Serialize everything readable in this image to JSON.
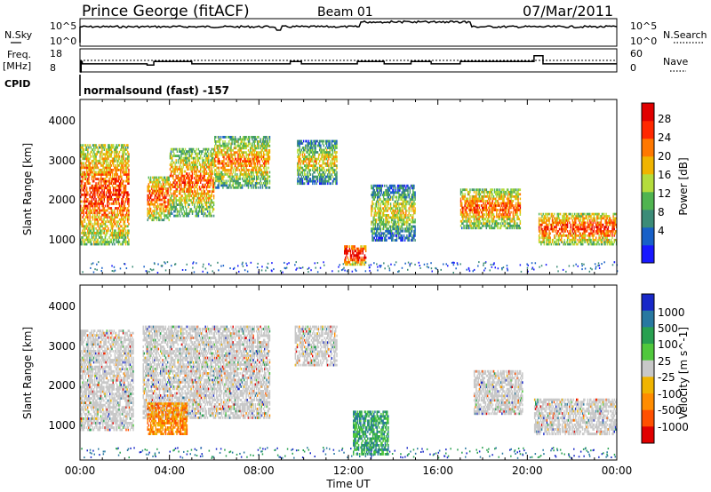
{
  "header": {
    "station": "Prince George (fitACF)",
    "beam": "Beam 01",
    "date": "07/Mar/2011"
  },
  "summary_panel": {
    "nsky_label": "N.Sky",
    "nsky_ticks": [
      "10^5",
      "10^0"
    ],
    "nsearch_label": "N.Search",
    "nsearch_ticks": [
      "10^5",
      "10^0"
    ],
    "freq_label": "Freq.",
    "freq_unit": "[MHz]",
    "freq_ticks": [
      "18",
      "8"
    ],
    "nave_label": "Nave",
    "nave_ticks": [
      "60",
      "0"
    ],
    "cpid_label": "CPID",
    "cpid_text": "normalsound (fast) -157"
  },
  "chart_data": [
    {
      "type": "line",
      "title": "",
      "ylabel": "Freq. [MHz]",
      "ylim": [
        8,
        18
      ],
      "series": [
        {
          "name": "Freq.",
          "x_hours": [
            0,
            0.05,
            0.1,
            0.8,
            1.5,
            2.1,
            2.6,
            3.0,
            3.3,
            4.7,
            5.0,
            6.8,
            7.3,
            8.9,
            9.4,
            9.7,
            9.9,
            12.0,
            12.4,
            13.2,
            13.6,
            14.2,
            14.8,
            15.3,
            15.7,
            16.8,
            17.0,
            20.3,
            20.7,
            24
          ],
          "values": [
            8,
            12.5,
            11.5,
            11.5,
            11.5,
            11.5,
            11.5,
            11,
            12.5,
            12.5,
            11.5,
            11.5,
            11.5,
            11.5,
            12.5,
            12.5,
            11.5,
            11.5,
            12.5,
            12.5,
            11.5,
            11.5,
            12.5,
            12.5,
            11.5,
            11.5,
            12.5,
            15,
            11.5,
            11.5
          ]
        }
      ]
    },
    {
      "type": "heatmap",
      "title": "",
      "xlabel": "Time UT",
      "ylabel": "Slant Range [km]",
      "ylim": [
        180,
        4500
      ],
      "xlim": [
        "00:00",
        "24:00"
      ],
      "x_ticks": [
        "00:00",
        "04:00",
        "08:00",
        "12:00",
        "16:00",
        "20:00",
        "00:00"
      ],
      "y_ticks": [
        "1000",
        "2000",
        "3000",
        "4000"
      ],
      "colorbar": {
        "label": "Power [dB]",
        "ticks": [
          "4",
          "8",
          "12",
          "16",
          "20",
          "24",
          "28"
        ],
        "colors": [
          "#1818ff",
          "#1860c8",
          "#3c8c78",
          "#50b450",
          "#b4dc3c",
          "#f0b400",
          "#ff7800",
          "#ff2800",
          "#e00000"
        ]
      },
      "regions": [
        {
          "t0": 0.0,
          "t1": 2.2,
          "r0": 900,
          "r1": 3400,
          "level": 0.7
        },
        {
          "t0": 3.0,
          "t1": 4.0,
          "r0": 1500,
          "r1": 2600,
          "level": 0.7
        },
        {
          "t0": 4.0,
          "t1": 6.0,
          "r0": 1600,
          "r1": 3300,
          "level": 0.55
        },
        {
          "t0": 6.0,
          "t1": 8.5,
          "r0": 2300,
          "r1": 3600,
          "level": 0.5
        },
        {
          "t0": 9.7,
          "t1": 11.5,
          "r0": 2400,
          "r1": 3500,
          "level": 0.3
        },
        {
          "t0": 11.8,
          "t1": 12.8,
          "r0": 400,
          "r1": 900,
          "level": 0.95
        },
        {
          "t0": 13.0,
          "t1": 15.0,
          "r0": 1000,
          "r1": 2400,
          "level": 0.25
        },
        {
          "t0": 17.0,
          "t1": 19.7,
          "r0": 1300,
          "r1": 2300,
          "level": 0.6
        },
        {
          "t0": 20.5,
          "t1": 24.0,
          "r0": 900,
          "r1": 1700,
          "level": 0.7
        }
      ]
    },
    {
      "type": "heatmap",
      "title": "",
      "xlabel": "Time UT",
      "ylabel": "Slant Range [km]",
      "ylim": [
        180,
        4500
      ],
      "xlim": [
        "00:00",
        "24:00"
      ],
      "x_ticks": [
        "00:00",
        "04:00",
        "08:00",
        "12:00",
        "16:00",
        "20:00",
        "00:00"
      ],
      "y_ticks": [
        "1000",
        "2000",
        "3000",
        "4000"
      ],
      "colorbar": {
        "label": "Velocity [m s^-1]",
        "ticks": [
          "1000",
          "500",
          "100",
          "25",
          "-25",
          "-100",
          "-500",
          "-1000"
        ],
        "colors": [
          "#1828c8",
          "#2878a0",
          "#28a050",
          "#50c83c",
          "#c8c8c8",
          "#f0b400",
          "#ff8c00",
          "#ff5000",
          "#e00000"
        ]
      },
      "regions": [
        {
          "t0": 0.0,
          "t1": 2.4,
          "r0": 900,
          "r1": 3400,
          "level": "ground"
        },
        {
          "t0": 2.8,
          "t1": 8.5,
          "r0": 1200,
          "r1": 3500,
          "level": "ground"
        },
        {
          "t0": 3.0,
          "t1": 4.8,
          "r0": 800,
          "r1": 1600,
          "level": "negative"
        },
        {
          "t0": 9.6,
          "t1": 11.5,
          "r0": 2500,
          "r1": 3500,
          "level": "ground"
        },
        {
          "t0": 12.2,
          "t1": 13.8,
          "r0": 300,
          "r1": 1400,
          "level": "positive"
        },
        {
          "t0": 17.6,
          "t1": 19.8,
          "r0": 1300,
          "r1": 2400,
          "level": "ground"
        },
        {
          "t0": 20.3,
          "t1": 24.0,
          "r0": 800,
          "r1": 1700,
          "level": "ground"
        }
      ]
    }
  ]
}
